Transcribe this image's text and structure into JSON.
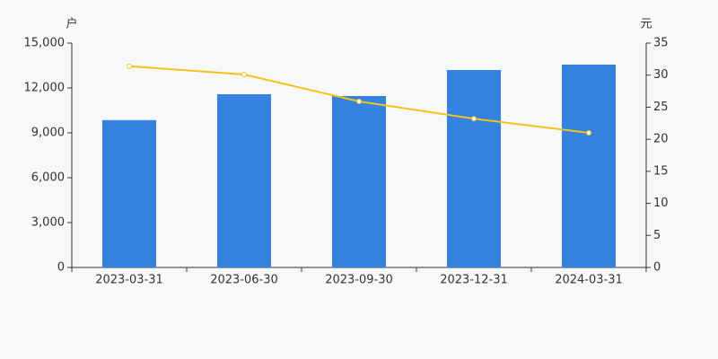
{
  "chart_data": {
    "type": "bar",
    "y_label": "户",
    "y2_label": "元",
    "categories": [
      "2023-03-31",
      "2023-06-30",
      "2023-09-30",
      "2023-12-31",
      "2024-03-31"
    ],
    "series": [
      {
        "type": "bar",
        "color": "#3482e2",
        "values": [
          9850,
          11580,
          11460,
          13200,
          13560
        ]
      },
      {
        "type": "line",
        "axis": "y2",
        "color": "#f5c21b",
        "values": [
          31.4,
          30.1,
          25.9,
          23.2,
          21.0
        ]
      }
    ],
    "ylim": [
      0,
      15000
    ],
    "yticks": [
      0,
      {
        "value": 3000,
        "label": "3,000"
      },
      {
        "value": 6000,
        "label": "6,000"
      },
      {
        "value": 9000,
        "label": "9,000"
      },
      {
        "value": 12000,
        "label": "12,000"
      },
      {
        "value": 15000,
        "label": "15,000"
      }
    ],
    "y2lim": [
      0,
      35
    ],
    "y2ticks": [
      0,
      5,
      10,
      15,
      20,
      25,
      30,
      35
    ]
  }
}
